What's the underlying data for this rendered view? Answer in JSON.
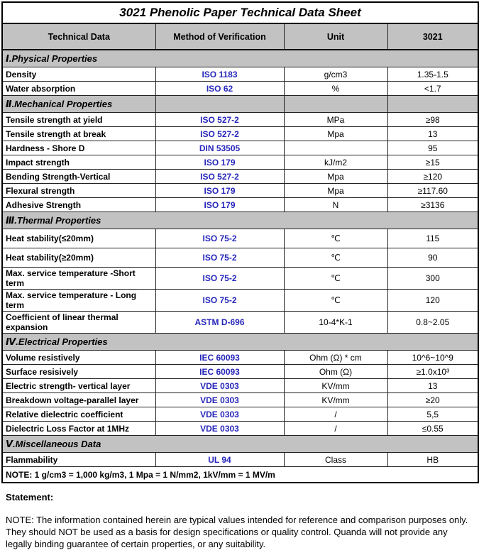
{
  "page": {
    "title": "3021 Phenolic Paper Technical Data Sheet"
  },
  "table": {
    "columns": [
      "Technical Data",
      "Method of Verification",
      "Unit",
      "3021"
    ],
    "sections": [
      {
        "label": "Ⅰ.Physical Properties",
        "rows": [
          {
            "name": "Density",
            "method": "ISO 1183",
            "unit": "g/cm3",
            "value": "1.35-1.5"
          },
          {
            "name": "Water absorption",
            "method": "ISO 62",
            "unit": "%",
            "value": "<1.7"
          }
        ]
      },
      {
        "label": "Ⅱ.Mechanical Properties",
        "rows": [
          {
            "name": "Tensile strength at yield",
            "method": "ISO 527-2",
            "unit": "MPa",
            "value": "≥98"
          },
          {
            "name": "Tensile strength at break",
            "method": "ISO 527-2",
            "unit": "Mpa",
            "value": "13"
          },
          {
            "name": "Hardness - Shore D",
            "method": "DIN 53505",
            "unit": "",
            "value": "95"
          },
          {
            "name": "Impact strength",
            "method": "ISO 179",
            "unit": "kJ/m2",
            "value": "≥15"
          },
          {
            "name": "Bending Strength-Vertical",
            "method": "ISO 527-2",
            "unit": "Mpa",
            "value": "≥120"
          },
          {
            "name": "Flexural strength",
            "method": "ISO 179",
            "unit": "Mpa",
            "value": "≥117.60"
          },
          {
            "name": "Adhesive Strength",
            "method": "ISO 179",
            "unit": "N",
            "value": "≥3136"
          }
        ]
      },
      {
        "label": "Ⅲ.Thermal Properties",
        "rows": [
          {
            "name": "Heat stability(≤20mm)",
            "method": "ISO 75-2",
            "unit": "℃",
            "value": "115"
          },
          {
            "name": "Heat stability(≥20mm)",
            "method": "ISO 75-2",
            "unit": "℃",
            "value": "90"
          },
          {
            "name": "Max. service temperature -Short term",
            "method": "ISO 75-2",
            "unit": "℃",
            "value": "300"
          },
          {
            "name": "Max. service temperature - Long term",
            "method": "ISO 75-2",
            "unit": "℃",
            "value": "120"
          },
          {
            "name": "Coefficient of linear thermal expansion",
            "method": "ASTM D-696",
            "unit": "10-4*K-1",
            "value": "0.8~2.05"
          }
        ]
      },
      {
        "label": "Ⅳ.Electrical Properties",
        "rows": [
          {
            "name": "Volume resistively",
            "method": "IEC 60093",
            "unit": "Ohm (Ω) * cm",
            "value": "10^6~10^9"
          },
          {
            "name": "Surface resisively",
            "method": "IEC 60093",
            "unit": "Ohm (Ω)",
            "value": "≥1.0x10³"
          },
          {
            "name": "Electric strength- vertical layer",
            "method": "VDE 0303",
            "unit": "KV/mm",
            "value": "13"
          },
          {
            "name": "Breakdown voltage-parallel layer",
            "method": "VDE 0303",
            "unit": "KV/mm",
            "value": "≥20"
          },
          {
            "name": "Relative dielectric coefficient",
            "method": "VDE 0303",
            "unit": "/",
            "value": "5,5"
          },
          {
            "name": "Dielectric Loss Factor at 1MHz",
            "method": "VDE 0303",
            "unit": "/",
            "value": "≤0.55"
          }
        ]
      },
      {
        "label": "Ⅴ.Miscellaneous Data",
        "rows": [
          {
            "name": "Flammability",
            "method": "UL 94",
            "unit": "Class",
            "value": "HB"
          }
        ]
      }
    ],
    "footnote": "NOTE: 1 g/cm3 = 1,000 kg/m3, 1 Mpa = 1 N/mm2, 1kV/mm = 1 MV/m"
  },
  "statement": {
    "label": "Statement:",
    "text": "NOTE: The information contained herein are typical values intended for reference and comparison purposes only. They should NOT be used as a basis for design specifications or quality control. Quanda will not provide any legally binding guarantee of certain properties, or any suitability."
  },
  "colors": {
    "header_bg": "#c2c2c2",
    "method_text": "#2626bb",
    "border": "#000000",
    "text": "#000000"
  }
}
